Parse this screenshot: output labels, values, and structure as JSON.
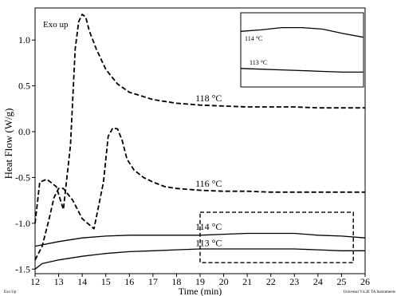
{
  "chart_data": {
    "type": "line",
    "title": "",
    "xlabel": "Time (min)",
    "ylabel": "Heat Flow (W/g)",
    "corner_label": "Exo  up",
    "footer_left": "Exo Up",
    "footer_right": "Universal V4.2E TA Instruments",
    "xlim": [
      12,
      26
    ],
    "ylim": [
      -1.55,
      1.35
    ],
    "xticks": [
      12,
      13,
      14,
      15,
      16,
      17,
      18,
      19,
      20,
      21,
      22,
      23,
      24,
      25,
      26
    ],
    "yticks": [
      -1.5,
      -1.0,
      -0.5,
      0.0,
      0.5,
      1.0
    ],
    "ytick_labels": [
      "-1.5",
      "-1.0",
      "-0.5",
      "0.0",
      "0.5",
      "1.0"
    ],
    "grid": false,
    "series": [
      {
        "name": "118 °C",
        "style": "dashed",
        "label_at": [
          18.8,
          0.33
        ],
        "x": [
          12.0,
          12.2,
          12.5,
          12.9,
          13.2,
          13.5,
          13.7,
          13.85,
          14.0,
          14.15,
          14.3,
          14.6,
          15.0,
          15.5,
          16.0,
          17.0,
          18.0,
          19.0,
          20.0,
          21.0,
          22.0,
          23.0,
          24.0,
          25.0,
          26.0
        ],
        "y": [
          -1.0,
          -0.55,
          -0.52,
          -0.6,
          -0.85,
          -0.15,
          0.9,
          1.2,
          1.28,
          1.25,
          1.1,
          0.9,
          0.68,
          0.52,
          0.43,
          0.35,
          0.31,
          0.29,
          0.28,
          0.27,
          0.27,
          0.27,
          0.26,
          0.26,
          0.26
        ]
      },
      {
        "name": "116 °C",
        "style": "dashed",
        "label_at": [
          18.8,
          -0.6
        ],
        "x": [
          12.0,
          12.3,
          12.6,
          12.8,
          13.0,
          13.2,
          13.6,
          14.0,
          14.5,
          14.9,
          15.1,
          15.3,
          15.5,
          15.7,
          15.9,
          16.2,
          16.6,
          17.0,
          17.5,
          18.0,
          19.0,
          20.0,
          21.0,
          22.0,
          23.0,
          24.0,
          25.0,
          26.0
        ],
        "y": [
          -1.4,
          -1.25,
          -0.95,
          -0.72,
          -0.62,
          -0.62,
          -0.75,
          -0.95,
          -1.06,
          -0.55,
          -0.05,
          0.04,
          0.03,
          -0.1,
          -0.3,
          -0.42,
          -0.5,
          -0.55,
          -0.6,
          -0.62,
          -0.64,
          -0.65,
          -0.65,
          -0.66,
          -0.66,
          -0.66,
          -0.66,
          -0.66
        ]
      },
      {
        "name": "114 °C",
        "style": "solid",
        "label_at": [
          18.8,
          -1.07
        ],
        "x": [
          12.0,
          13.0,
          14.0,
          15.0,
          16.0,
          17.0,
          18.0,
          19.0,
          20.0,
          21.0,
          22.0,
          23.0,
          24.0,
          25.0,
          26.0
        ],
        "y": [
          -1.25,
          -1.2,
          -1.16,
          -1.14,
          -1.13,
          -1.13,
          -1.13,
          -1.13,
          -1.12,
          -1.11,
          -1.11,
          -1.11,
          -1.13,
          -1.14,
          -1.16
        ]
      },
      {
        "name": "113 °C",
        "style": "solid",
        "label_at": [
          18.8,
          -1.25
        ],
        "x": [
          12.0,
          12.3,
          13.0,
          14.0,
          15.0,
          16.0,
          17.0,
          18.0,
          19.0,
          20.0,
          21.0,
          22.0,
          23.0,
          24.0,
          25.0,
          26.0
        ],
        "y": [
          -1.5,
          -1.44,
          -1.4,
          -1.36,
          -1.33,
          -1.31,
          -1.3,
          -1.29,
          -1.28,
          -1.28,
          -1.28,
          -1.28,
          -1.28,
          -1.29,
          -1.3,
          -1.3
        ]
      }
    ],
    "zoom_box": {
      "x": [
        19.0,
        25.5
      ],
      "y": [
        -1.43,
        -0.88
      ]
    },
    "inset": {
      "labels": [
        "114 °C",
        "113 °C"
      ],
      "series": [
        {
          "name": "114 °C",
          "values": [
            0.75,
            0.77,
            0.8,
            0.8,
            0.78,
            0.72,
            0.67
          ]
        },
        {
          "name": "113 °C",
          "values": [
            0.25,
            0.24,
            0.23,
            0.22,
            0.21,
            0.2,
            0.2
          ]
        }
      ]
    }
  }
}
